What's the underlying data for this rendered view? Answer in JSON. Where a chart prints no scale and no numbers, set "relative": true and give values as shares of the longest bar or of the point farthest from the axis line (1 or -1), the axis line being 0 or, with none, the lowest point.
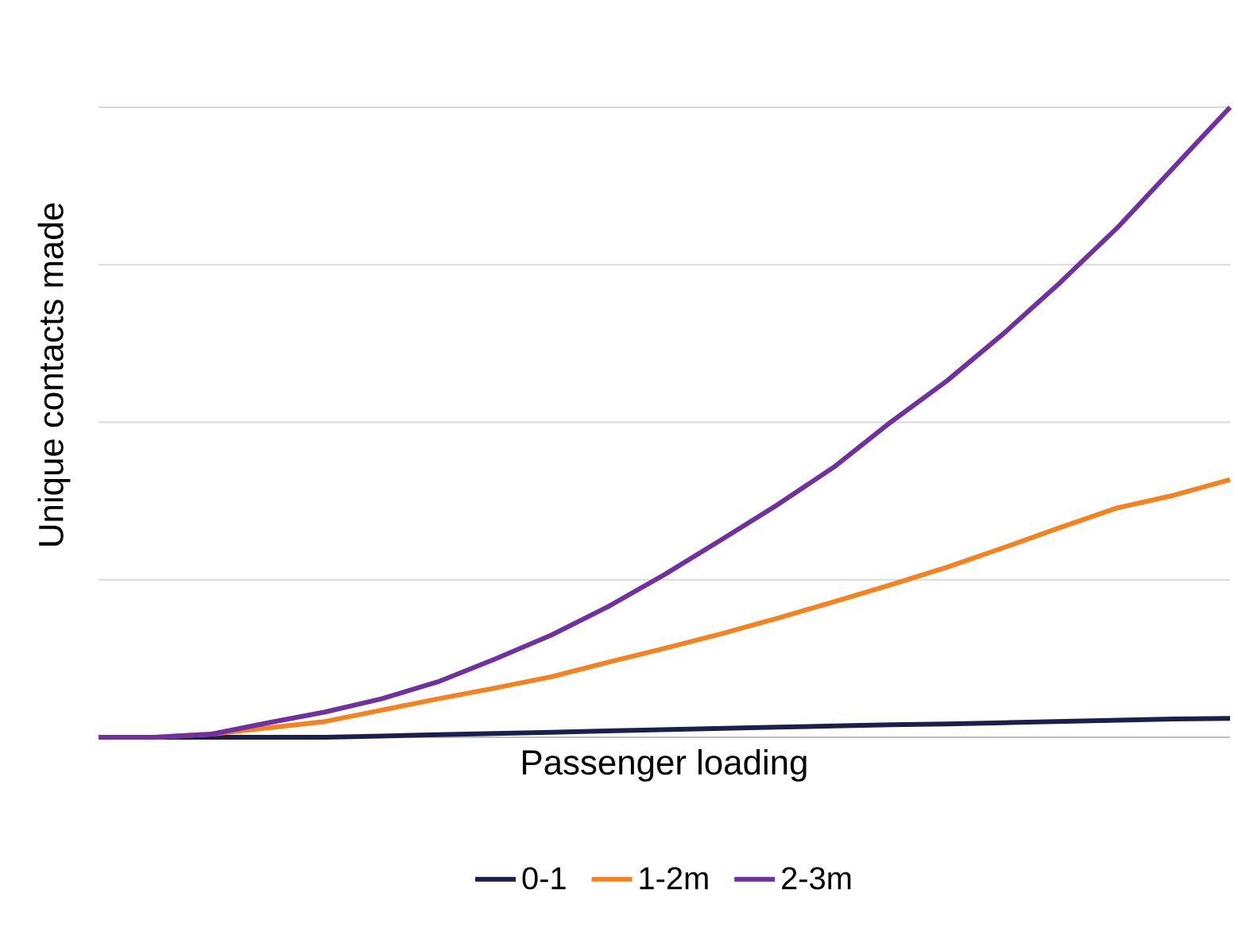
{
  "chart_data": {
    "type": "line",
    "relative": true,
    "xlabel": "Passenger loading",
    "ylabel": "Unique contacts made",
    "grid": "y",
    "legend": "bottom",
    "marker": "none",
    "line_style": "solid",
    "categories": [
      null,
      null,
      null,
      null,
      null,
      null,
      null,
      null,
      null,
      null,
      null,
      null,
      null,
      null,
      null,
      null,
      null,
      null,
      null,
      null,
      null
    ],
    "series": [
      {
        "name": "0-1",
        "color": "#1b1f4b",
        "values": [
          0,
          0,
          0,
          0,
          0,
          0.002,
          0.004,
          0.006,
          0.008,
          0.01,
          0.012,
          0.014,
          0.016,
          0.018,
          0.02,
          0.021,
          0.023,
          0.025,
          0.027,
          0.029,
          0.03
        ]
      },
      {
        "name": "1-2m",
        "color": "#f5821f",
        "values": [
          0,
          0,
          0.005,
          0.015,
          0.025,
          0.043,
          0.061,
          0.078,
          0.096,
          0.119,
          0.141,
          0.164,
          0.189,
          0.215,
          0.242,
          0.27,
          0.301,
          0.333,
          0.364,
          0.384,
          0.409
        ]
      },
      {
        "name": "2-3m",
        "color": "#7030a0",
        "values": [
          0,
          0,
          0.005,
          0.023,
          0.04,
          0.061,
          0.088,
          0.124,
          0.162,
          0.207,
          0.258,
          0.313,
          0.369,
          0.429,
          0.5,
          0.566,
          0.641,
          0.722,
          0.808,
          0.904,
          1
        ]
      }
    ]
  }
}
